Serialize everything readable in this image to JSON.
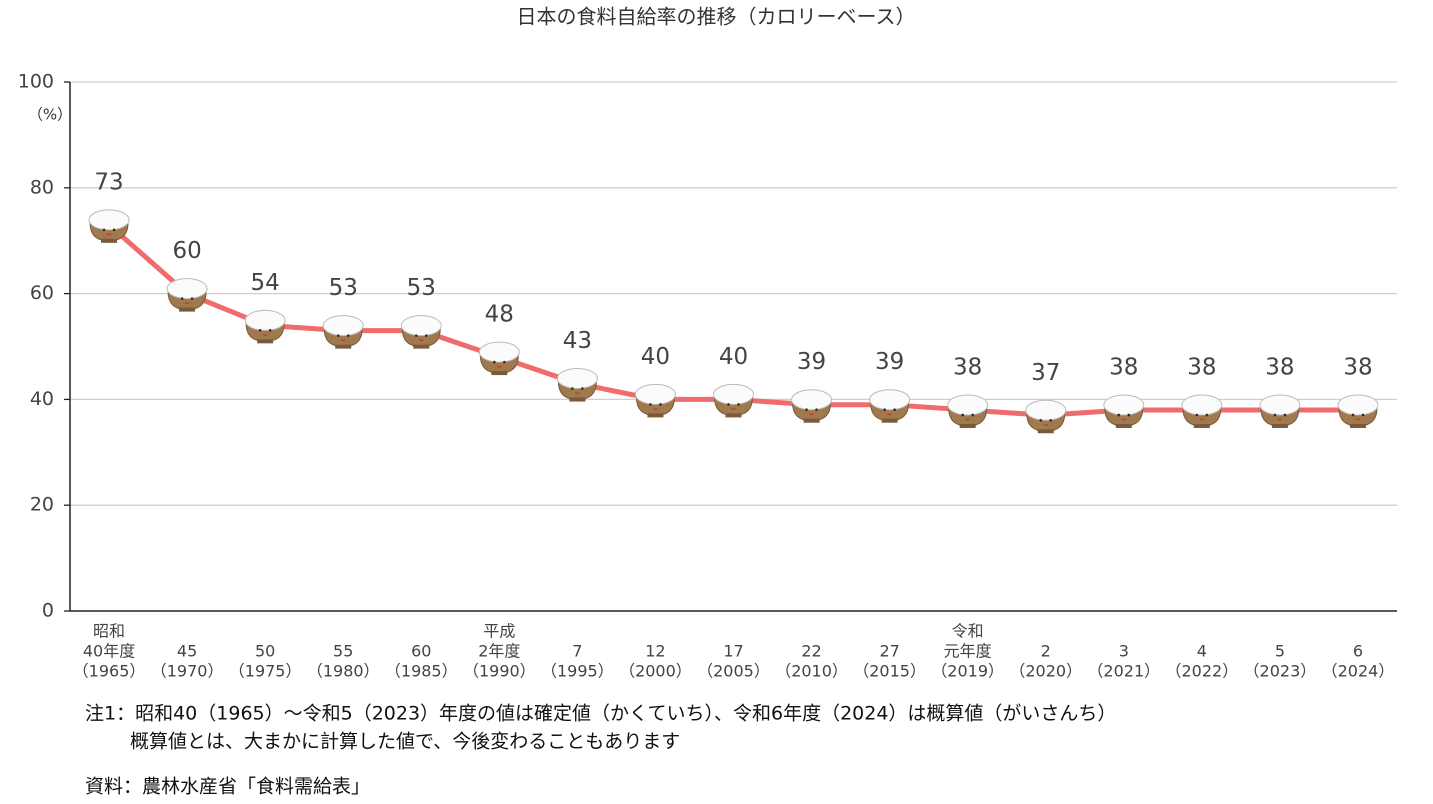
{
  "chart_data": {
    "type": "line",
    "title": "日本の食料自給率の推移（カロリーベース）",
    "y_unit": "（%）",
    "categories": [
      [
        "昭和",
        "40年度",
        "（1965）"
      ],
      [
        "45",
        "（1970）"
      ],
      [
        "50",
        "（1975）"
      ],
      [
        "55",
        "（1980）"
      ],
      [
        "60",
        "（1985）"
      ],
      [
        "平成",
        "2年度",
        "（1990）"
      ],
      [
        "7",
        "（1995）"
      ],
      [
        "12",
        "（2000）"
      ],
      [
        "17",
        "（2005）"
      ],
      [
        "22",
        "（2010）"
      ],
      [
        "27",
        "（2015）"
      ],
      [
        "令和",
        "元年度",
        "（2019）"
      ],
      [
        "2",
        "（2020）"
      ],
      [
        "3",
        "（2021）"
      ],
      [
        "4",
        "（2022）"
      ],
      [
        "5",
        "（2023）"
      ],
      [
        "6",
        "（2024）"
      ]
    ],
    "values": [
      73,
      60,
      54,
      53,
      53,
      48,
      43,
      40,
      40,
      39,
      39,
      38,
      37,
      38,
      38,
      38,
      38
    ],
    "color": "#f06b6b",
    "ylim": [
      0,
      100
    ],
    "yticks": [
      0,
      20,
      40,
      60,
      80,
      100
    ],
    "grid": true,
    "notes": [
      "注1：昭和40（1965）～令和5（2023）年度の値は確定値（かくていち）、令和6年度（2024）は概算値（がいさんち）",
      "概算値とは、大まかに計算した値で、今後変わることもあります"
    ],
    "source": "資料：農林水産省「食料需給表」"
  }
}
